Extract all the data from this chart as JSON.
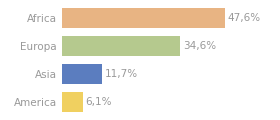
{
  "categories": [
    "Africa",
    "Europa",
    "Asia",
    "America"
  ],
  "values": [
    47.6,
    34.6,
    11.7,
    6.1
  ],
  "labels": [
    "47,6%",
    "34,6%",
    "11,7%",
    "6,1%"
  ],
  "bar_colors": [
    "#e8b483",
    "#b5c98e",
    "#5b7dbf",
    "#f0d060"
  ],
  "background_color": "#ffffff",
  "xlim": [
    0,
    62
  ],
  "bar_height": 0.72,
  "label_fontsize": 7.5,
  "tick_fontsize": 7.5,
  "text_color": "#999999"
}
